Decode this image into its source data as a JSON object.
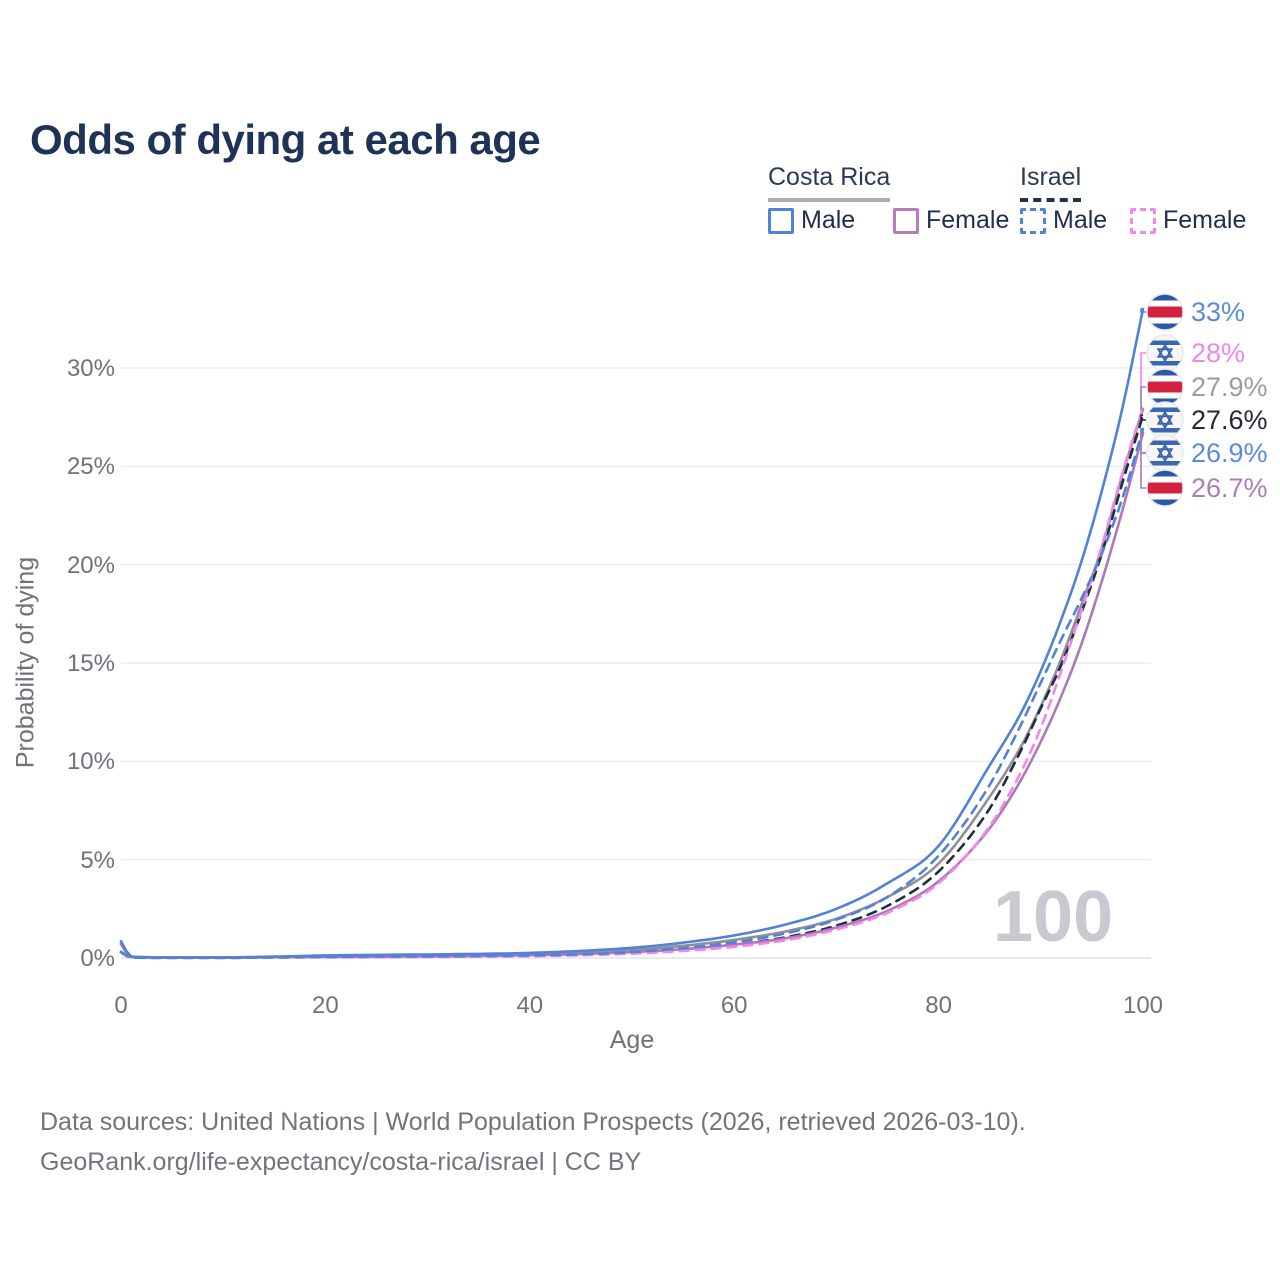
{
  "title": "Odds of dying at each age",
  "watermark_age": "100",
  "legend": {
    "groups": [
      {
        "label": "Costa Rica",
        "line_style": "solid",
        "underline_color": "#acacb4",
        "items": [
          {
            "label": "Male",
            "color": "#5182d8"
          },
          {
            "label": "Female",
            "color": "#b87cbe"
          }
        ]
      },
      {
        "label": "Israel",
        "line_style": "dashed",
        "underline_color": "#22304a",
        "items": [
          {
            "label": "Male",
            "color": "#5182d8"
          },
          {
            "label": "Female",
            "color": "#f584ec"
          }
        ]
      }
    ]
  },
  "footer": {
    "line1": "Data sources: United Nations | World Population Prospects (2026, retrieved 2026-03-10).",
    "line2": "GeoRank.org/life-expectancy/costa-rica/israel | CC BY"
  },
  "chart_data": {
    "type": "line",
    "title": "Odds of dying at each age",
    "xlabel": "Age",
    "ylabel": "Probability of dying",
    "xlim": [
      0,
      100
    ],
    "ylim_percent": [
      0,
      33.5
    ],
    "x_ticks": [
      0,
      20,
      40,
      60,
      80,
      100
    ],
    "y_ticks": [
      {
        "value": 0,
        "label": "0%"
      },
      {
        "value": 5,
        "label": "5%"
      },
      {
        "value": 10,
        "label": "10%"
      },
      {
        "value": 15,
        "label": "15%"
      },
      {
        "value": 20,
        "label": "20%"
      },
      {
        "value": 25,
        "label": "25%"
      },
      {
        "value": 30,
        "label": "30%"
      }
    ],
    "grid": true,
    "legend_position": "top-right",
    "ages": [
      0,
      1,
      5,
      10,
      15,
      20,
      25,
      30,
      35,
      40,
      45,
      50,
      55,
      60,
      65,
      70,
      75,
      80,
      85,
      88,
      90,
      92,
      94,
      96,
      98,
      100
    ],
    "series": [
      {
        "id": "cr_both",
        "name": "Costa Rica (both sexes)",
        "country": "Costa Rica",
        "flag": "costa-rica",
        "style": "solid",
        "color": "#90909a",
        "end_label": "27.9%",
        "end_label_color": "#9b9ba3",
        "values_percent": [
          0.78,
          0.06,
          0.025,
          0.025,
          0.055,
          0.09,
          0.11,
          0.13,
          0.16,
          0.2,
          0.28,
          0.41,
          0.62,
          0.92,
          1.35,
          2.0,
          3.1,
          4.8,
          8.2,
          10.7,
          12.8,
          15.2,
          18.0,
          20.9,
          24.6,
          27.9
        ]
      },
      {
        "id": "il_both",
        "name": "Israel (both sexes)",
        "country": "Israel",
        "flag": "israel",
        "style": "dashed",
        "color": "#232d40",
        "end_label": "27.6%",
        "end_label_color": "#232838",
        "values_percent": [
          0.28,
          0.02,
          0.01,
          0.01,
          0.025,
          0.05,
          0.06,
          0.07,
          0.09,
          0.11,
          0.16,
          0.26,
          0.43,
          0.68,
          1.05,
          1.65,
          2.65,
          4.4,
          7.6,
          10.5,
          12.7,
          14.9,
          17.6,
          20.6,
          24.2,
          27.6
        ]
      },
      {
        "id": "cr_female",
        "name": "Costa Rica Female",
        "country": "Costa Rica",
        "flag": "costa-rica",
        "style": "solid",
        "color": "#ac79b6",
        "end_label": "26.7%",
        "end_label_color": "#ae7cb8",
        "values_percent": [
          0.7,
          0.05,
          0.02,
          0.02,
          0.04,
          0.05,
          0.06,
          0.08,
          0.1,
          0.14,
          0.2,
          0.3,
          0.45,
          0.68,
          1.0,
          1.55,
          2.4,
          3.9,
          6.6,
          9.0,
          11.0,
          13.3,
          16.0,
          19.2,
          22.8,
          26.7
        ]
      },
      {
        "id": "il_female",
        "name": "Israel Female",
        "country": "Israel",
        "flag": "israel",
        "style": "dashed",
        "color": "#f584ec",
        "end_label": "28%",
        "end_label_color": "#f186ec",
        "values_percent": [
          0.27,
          0.02,
          0.01,
          0.01,
          0.02,
          0.03,
          0.04,
          0.05,
          0.07,
          0.09,
          0.14,
          0.22,
          0.36,
          0.57,
          0.9,
          1.45,
          2.3,
          3.8,
          6.7,
          9.4,
          11.7,
          14.6,
          17.7,
          21.0,
          24.7,
          28.0
        ]
      },
      {
        "id": "il_male",
        "name": "Israel Male",
        "country": "Israel",
        "flag": "israel",
        "style": "dashed",
        "color": "#5182d8",
        "end_label": "26.9%",
        "end_label_color": "#5b8bdb",
        "values_percent": [
          0.32,
          0.02,
          0.01,
          0.01,
          0.03,
          0.06,
          0.07,
          0.08,
          0.1,
          0.13,
          0.19,
          0.3,
          0.5,
          0.8,
          1.25,
          1.95,
          3.1,
          5.2,
          8.8,
          11.8,
          14.0,
          16.2,
          18.3,
          20.6,
          23.4,
          26.9
        ]
      },
      {
        "id": "cr_male",
        "name": "Costa Rica Male",
        "country": "Costa Rica",
        "flag": "costa-rica",
        "style": "solid",
        "color": "#5182d8",
        "end_label": "33%",
        "end_label_color": "#5b8bdb",
        "values_percent": [
          0.85,
          0.07,
          0.03,
          0.03,
          0.07,
          0.13,
          0.16,
          0.18,
          0.21,
          0.26,
          0.36,
          0.52,
          0.78,
          1.15,
          1.7,
          2.5,
          3.8,
          5.7,
          9.8,
          12.4,
          14.6,
          17.2,
          20.2,
          23.8,
          28.0,
          33.0
        ]
      }
    ]
  }
}
